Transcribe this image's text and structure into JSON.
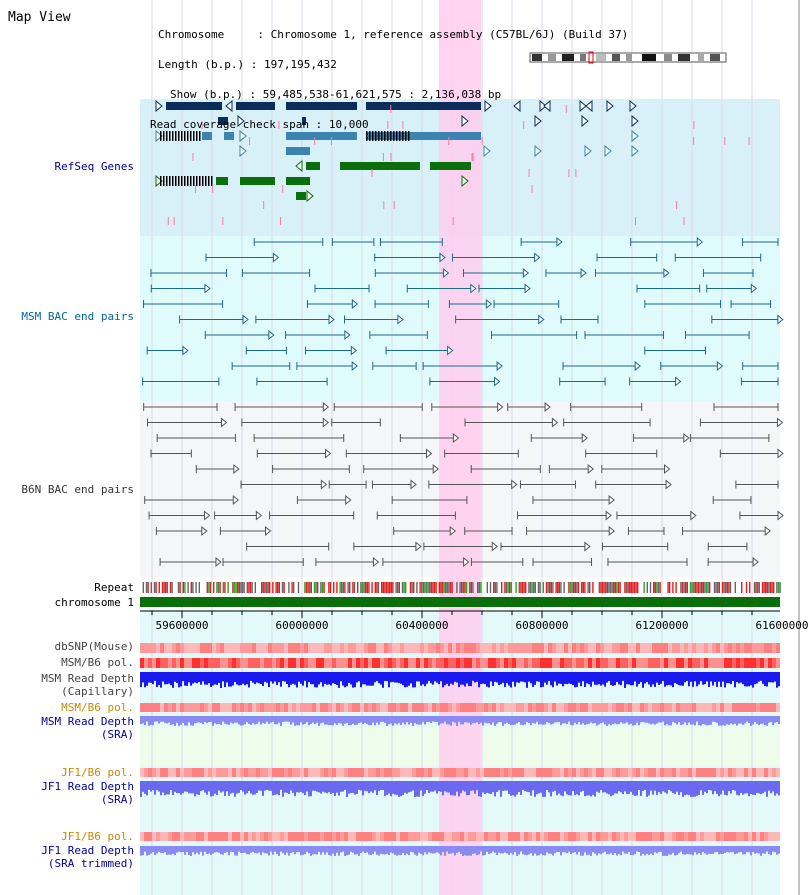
{
  "page_title": "Map View",
  "header": {
    "chromosome_label": "Chromosome",
    "chromosome_value": "Chromosome 1, reference assembly (C57BL/6J) (Build 37)",
    "length_label": "Length (b.p.)",
    "length_value": "197,195,432",
    "show_label": "Show (b.p.)",
    "show_value": "59,485,538-61,621,575 : 2,136,038 bp",
    "coverage_label": "Read coverage check span",
    "coverage_value": "10,000"
  },
  "tracks": {
    "refseq": "RefSeq Genes",
    "msm_bac": "MSM BAC end pairs",
    "b6n_bac": "B6N BAC end pairs",
    "repeat": "Repeat",
    "chromosome": "chromosome 1",
    "dbsnp": "dbSNP(Mouse)",
    "msm_b6_pol": "MSM/B6 pol.",
    "msm_depth_cap_1": "MSM Read Depth",
    "msm_depth_cap_2": "(Capillary)",
    "msm_b6_pol_2": "MSM/B6 pol.",
    "msm_depth_sra_1": "MSM Read Depth",
    "msm_depth_sra_2": "(SRA)",
    "jf1_b6_pol": "JF1/B6 pol.",
    "jf1_depth_sra_1": "JF1 Read Depth",
    "jf1_depth_sra_2": "(SRA)",
    "jf1_b6_pol_2": "JF1/B6 pol.",
    "jf1_depth_trim_1": "JF1 Read Depth",
    "jf1_depth_trim_2": "(SRA trimmed)"
  },
  "axis": {
    "ticks": [
      {
        "label": "59600000",
        "value": 59600000
      },
      {
        "label": "60000000",
        "value": 60000000
      },
      {
        "label": "60400000",
        "value": 60400000
      },
      {
        "label": "60800000",
        "value": 60800000
      },
      {
        "label": "61200000",
        "value": 61200000
      },
      {
        "label": "61600000",
        "value": 61600000
      }
    ]
  },
  "colors": {
    "refseq_bg": "#d8f0f8",
    "msm_bg": "#e0fbfb",
    "b6n_bg": "#f4f6f8",
    "highlight": "#ffccee",
    "gene_dark": "#0c2c5c",
    "gene_mid": "#3c84b0",
    "gene_green": "#0a6e0a",
    "msm_pair": "#1d6a8a",
    "b6n_pair": "#555555",
    "chromosome_bar": "#0a6e0a",
    "label_blue": "#000099",
    "label_teal": "#006699",
    "label_orange": "#cc8800"
  }
}
